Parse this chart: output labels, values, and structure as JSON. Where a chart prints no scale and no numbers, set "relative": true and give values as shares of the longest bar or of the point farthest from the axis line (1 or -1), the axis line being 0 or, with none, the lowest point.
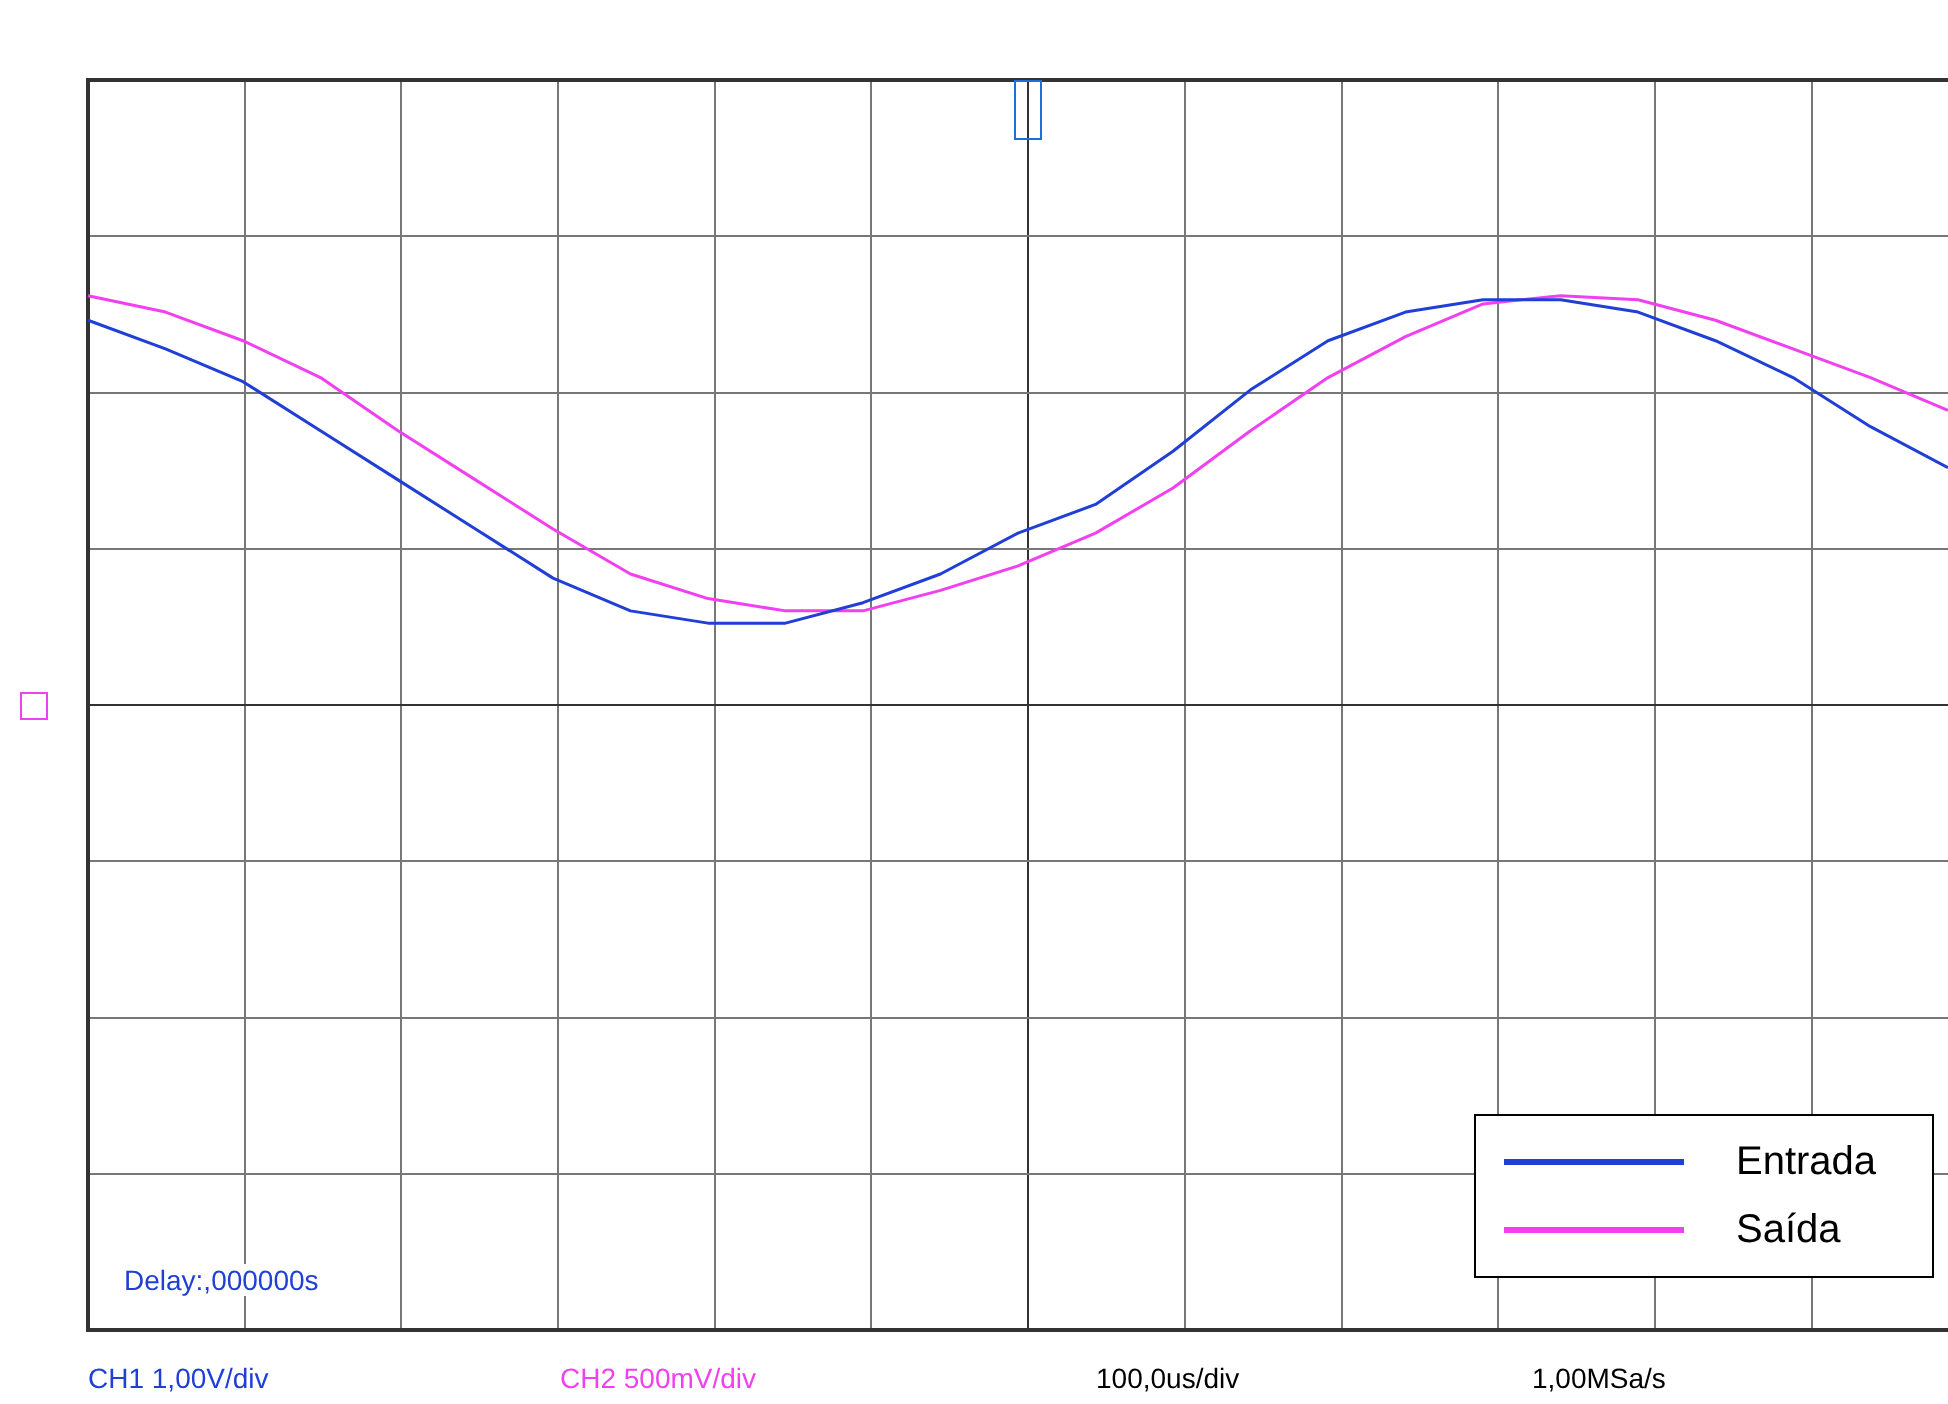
{
  "chart_data": {
    "type": "line",
    "relative": true,
    "grid": true,
    "legend": "bottom right",
    "marker": "none",
    "categories": [
      null,
      null,
      null,
      null,
      null,
      null,
      null,
      null,
      null,
      null,
      null,
      null,
      null,
      null,
      null,
      null,
      null,
      null,
      null,
      null,
      null,
      null,
      null,
      null,
      null
    ],
    "series": [
      {
        "name": "Entrada",
        "color": "#1f3fd6",
        "values": [
          0.94,
          0.87,
          0.79,
          0.67,
          0.55,
          0.43,
          0.31,
          0.23,
          0.2,
          0.2,
          0.25,
          0.32,
          0.42,
          0.49,
          0.62,
          0.77,
          0.89,
          0.96,
          0.99,
          0.99,
          0.96,
          0.89,
          0.8,
          0.68,
          0.58
        ]
      },
      {
        "name": "Saída",
        "color": "#f040f0",
        "values": [
          1.0,
          0.96,
          0.89,
          0.8,
          0.67,
          0.55,
          0.43,
          0.32,
          0.26,
          0.23,
          0.23,
          0.28,
          0.34,
          0.42,
          0.53,
          0.67,
          0.8,
          0.9,
          0.98,
          1.0,
          0.99,
          0.94,
          0.87,
          0.8,
          0.72
        ]
      }
    ],
    "annotations": [
      "Delay:,000000s",
      "CH1 1,00V/div",
      "CH2 500mV/div",
      "100,0us/div",
      "1,00MSa/s"
    ]
  }
}
